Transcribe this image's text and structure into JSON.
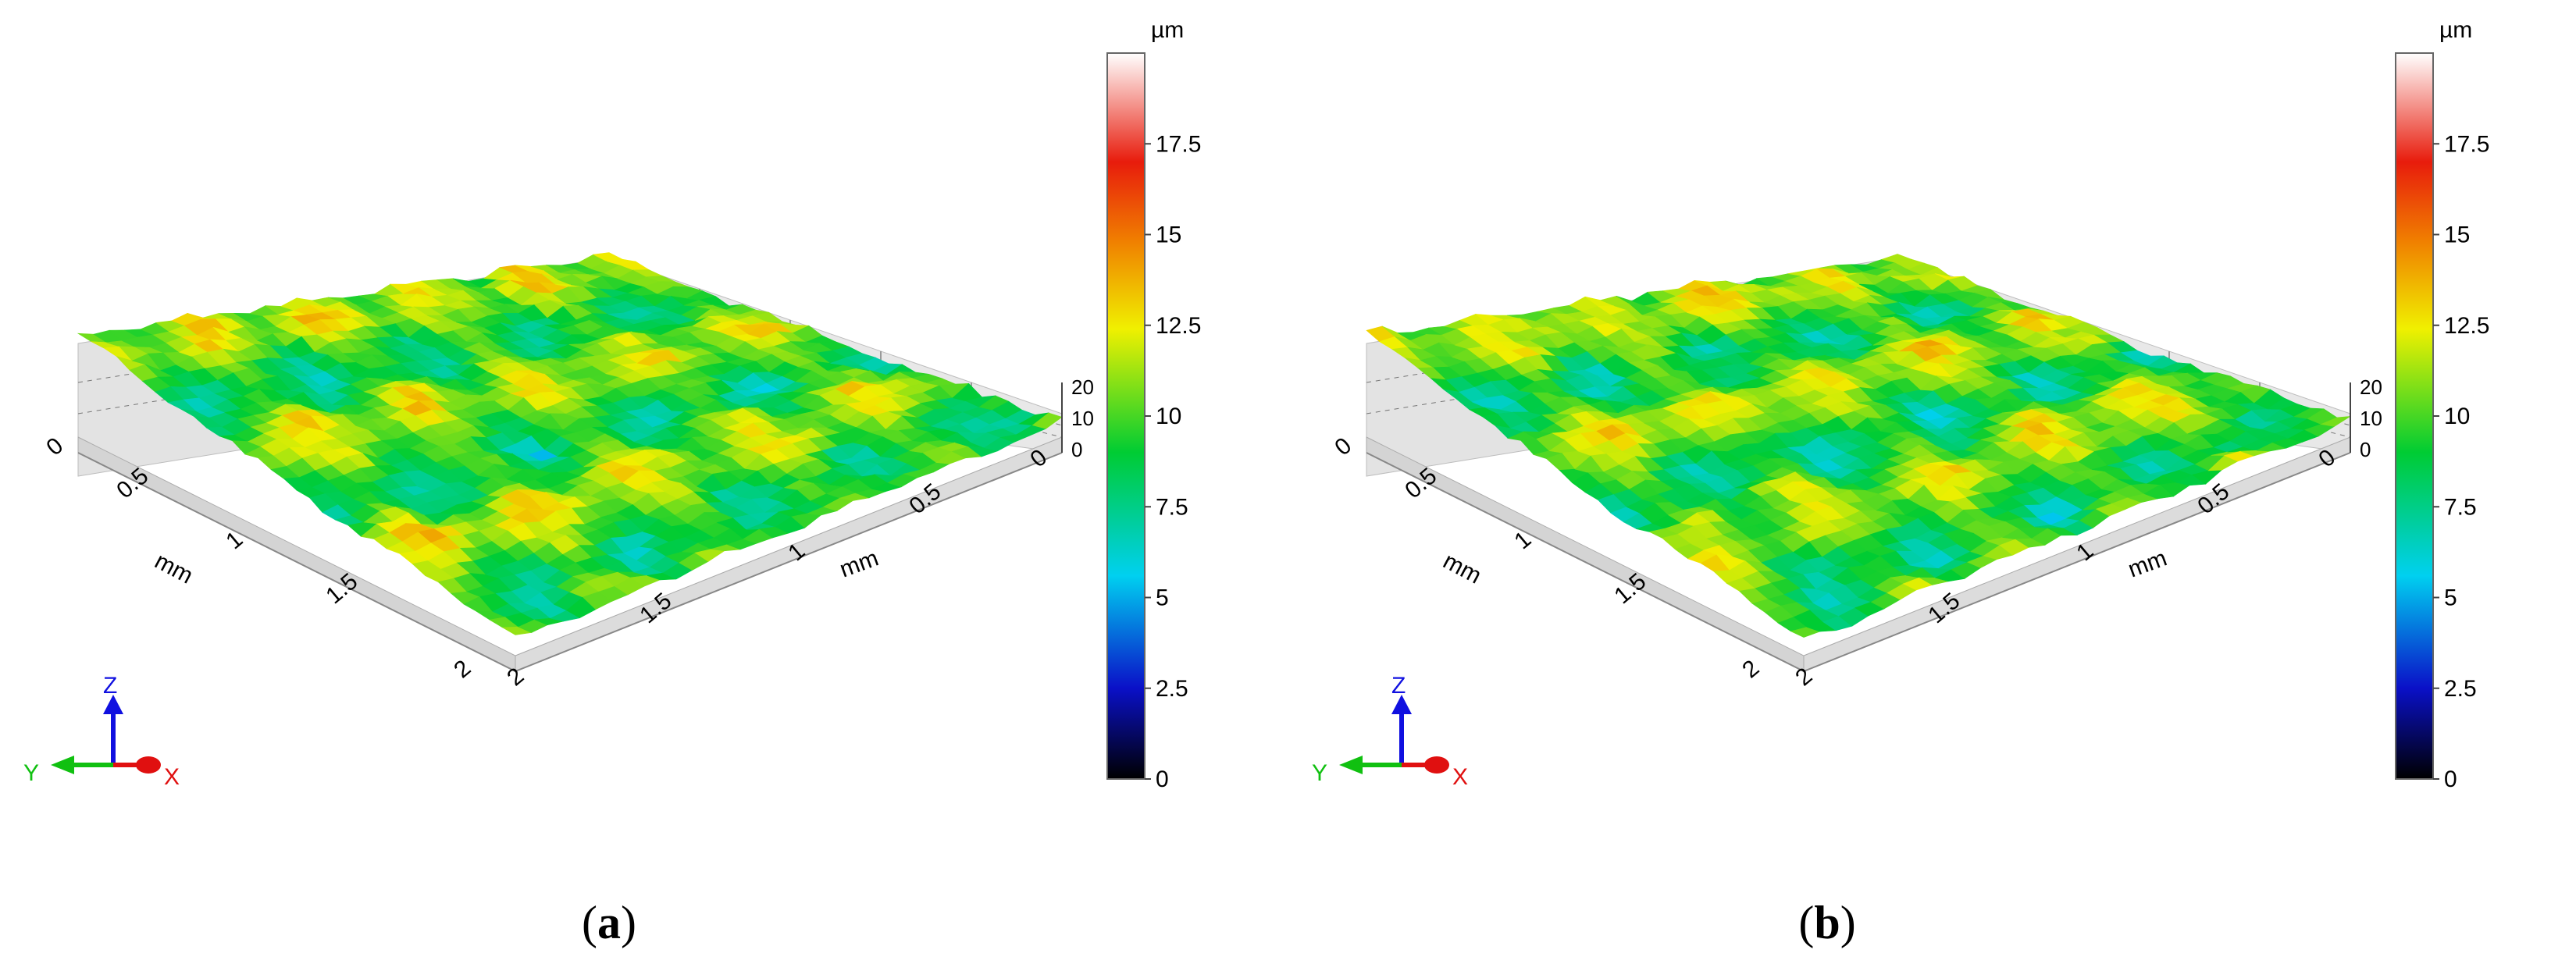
{
  "panels": [
    {
      "label": "a",
      "seed": 11,
      "axes": {
        "x_label": "mm",
        "y_label": "mm",
        "x_ticks": [
          "0",
          "0.5",
          "1",
          "1.5",
          "2"
        ],
        "y_ticks": [
          "0",
          "0.5",
          "1",
          "1.5",
          "2"
        ],
        "z_ticks": [
          "0",
          "10",
          "20"
        ]
      },
      "triad": {
        "x": "X",
        "y": "Y",
        "z": "Z"
      },
      "colorbar": {
        "unit": "µm",
        "ticks": [
          "0",
          "2.5",
          "5",
          "7.5",
          "10",
          "12.5",
          "15",
          "17.5"
        ]
      }
    },
    {
      "label": "b",
      "seed": 37,
      "axes": {
        "x_label": "mm",
        "y_label": "mm",
        "x_ticks": [
          "0",
          "0.5",
          "1",
          "1.5",
          "2"
        ],
        "y_ticks": [
          "0",
          "0.5",
          "1",
          "1.5",
          "2"
        ],
        "z_ticks": [
          "0",
          "10",
          "20"
        ]
      },
      "triad": {
        "x": "X",
        "y": "Y",
        "z": "Z"
      },
      "colorbar": {
        "unit": "µm",
        "ticks": [
          "0",
          "2.5",
          "5",
          "7.5",
          "10",
          "12.5",
          "15",
          "17.5"
        ]
      }
    }
  ],
  "chart_data": [
    {
      "type": "surface3d",
      "x_range_mm": [
        0,
        2
      ],
      "y_range_mm": [
        0,
        2
      ],
      "z_range_um": [
        0,
        20
      ],
      "colorbar_range_um": [
        0,
        20
      ],
      "colormap": [
        "#000000",
        "#0a10c8",
        "#00d0f0",
        "#00cc33",
        "#f0f000",
        "#f08000",
        "#e81c0c",
        "#ffffff"
      ],
      "z_mean_um": 10
    },
    {
      "type": "surface3d",
      "x_range_mm": [
        0,
        2
      ],
      "y_range_mm": [
        0,
        2
      ],
      "z_range_um": [
        0,
        20
      ],
      "colorbar_range_um": [
        0,
        20
      ],
      "colormap": [
        "#000000",
        "#0a10c8",
        "#00d0f0",
        "#00cc33",
        "#f0f000",
        "#f08000",
        "#e81c0c",
        "#ffffff"
      ],
      "z_mean_um": 10
    }
  ]
}
